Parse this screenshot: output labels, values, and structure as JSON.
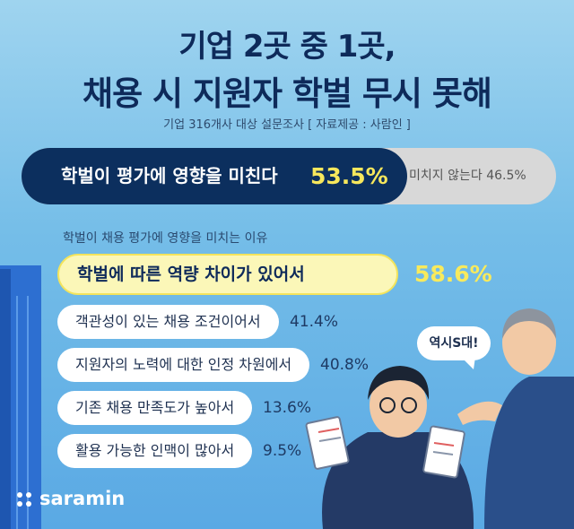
{
  "header": {
    "title_line1": "기업 2곳 중 1곳,",
    "title_line2": "채용 시 지원자 학벌 무시 못해",
    "subtitle": "기업 316개사 대상 설문조사 [ 자료제공 : 사람인 ]"
  },
  "chart_data": [
    {
      "type": "bar",
      "orientation": "horizontal-stacked",
      "categories": [
        "학벌이 평가에 영향을 미친다",
        "미치지 않는다"
      ],
      "values": [
        53.5,
        46.5
      ],
      "labels": [
        "53.5%",
        "46.5%"
      ],
      "unit": "%",
      "colors": [
        "#0c2f5e",
        "#d8d8d8"
      ]
    },
    {
      "type": "bar",
      "orientation": "horizontal",
      "title": "학벌이 채용 평가에 영향을 미치는 이유",
      "categories": [
        "학벌에 따른 역량 차이가 있어서",
        "객관성이 있는 채용 조건이어서",
        "지원자의 노력에 대한 인정 차원에서",
        "기존 채용 만족도가 높아서",
        "활용 가능한 인맥이 많아서"
      ],
      "values": [
        58.6,
        41.4,
        40.8,
        13.6,
        9.5
      ],
      "labels": [
        "58.6%",
        "41.4%",
        "40.8%",
        "13.6%",
        "9.5%"
      ],
      "unit": "%",
      "highlight_color": "#fbf7b8",
      "bar_color": "#ffffff"
    }
  ],
  "speech_bubble": "역시S대!",
  "brand": {
    "name": "saramin"
  }
}
